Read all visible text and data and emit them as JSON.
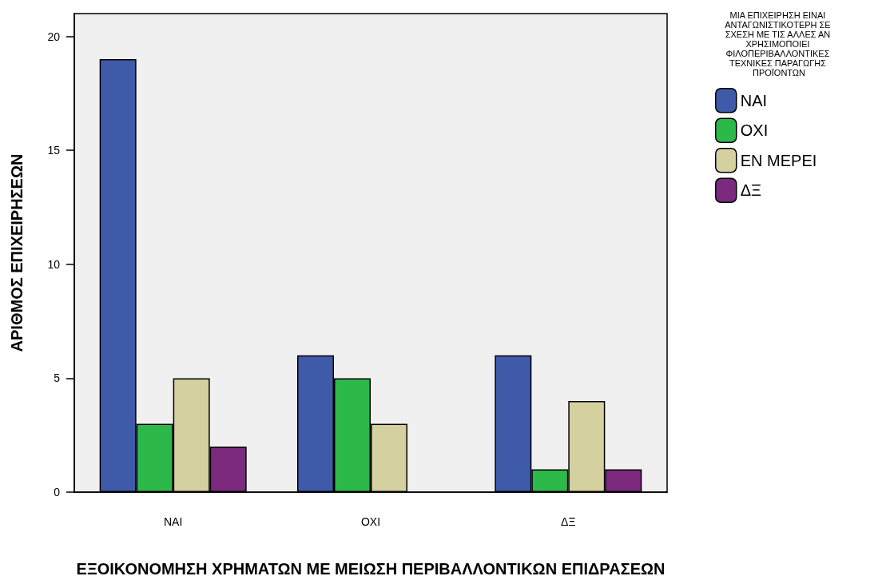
{
  "chart_data": {
    "type": "bar",
    "xlabel": "ΕΞΟΙΚΟΝΟΜΗΣΗ ΧΡΗΜΑΤΩΝ ΜΕ ΜΕΙΩΣΗ ΠΕΡΙΒΑΛΛΟΝΤΙΚΩΝ ΕΠΙΔΡΑΣΕΩΝ",
    "ylabel": "ΑΡΙΘΜΟΣ ΕΠΙΧΕΙΡΗΣΕΩΝ",
    "legend_title": "ΜΙΑ ΕΠΙΧΕΙΡΗΣΗ ΕΙΝΑΙ ΑΝΤΑΓΩΝΙΣΤΙΚΟΤΕΡΗ ΣΕ ΣΧΕΣΗ ΜΕ ΤΙΣ ΑΛΛΕΣ ΑΝ ΧΡΗΣΙΜΟΠΟΙΕΙ ΦΙΛΟΠΕΡΙΒΑΛΛΟΝΤΙΚΕΣ ΤΕΧΝΙΚΕΣ ΠΑΡΑΓΩΓΗΣ ΠΡΟΪΟΝΤΩΝ",
    "categories": [
      "ΝΑΙ",
      "ΟΧΙ",
      "ΔΞ"
    ],
    "series": [
      {
        "name": "ΝΑΙ",
        "color": "#3f5aa8",
        "values": [
          19,
          6,
          6
        ]
      },
      {
        "name": "ΟΧΙ",
        "color": "#2db84a",
        "values": [
          3,
          5,
          1
        ]
      },
      {
        "name": "ΕΝ ΜΕΡΕΙ",
        "color": "#d4d0a0",
        "values": [
          5,
          3,
          4
        ]
      },
      {
        "name": "ΔΞ",
        "color": "#7b2a7e",
        "values": [
          2,
          null,
          1
        ]
      }
    ],
    "ylim": [
      0,
      21
    ],
    "yticks": [
      0,
      5,
      10,
      15,
      20
    ],
    "grid": false,
    "legend": "top right"
  }
}
